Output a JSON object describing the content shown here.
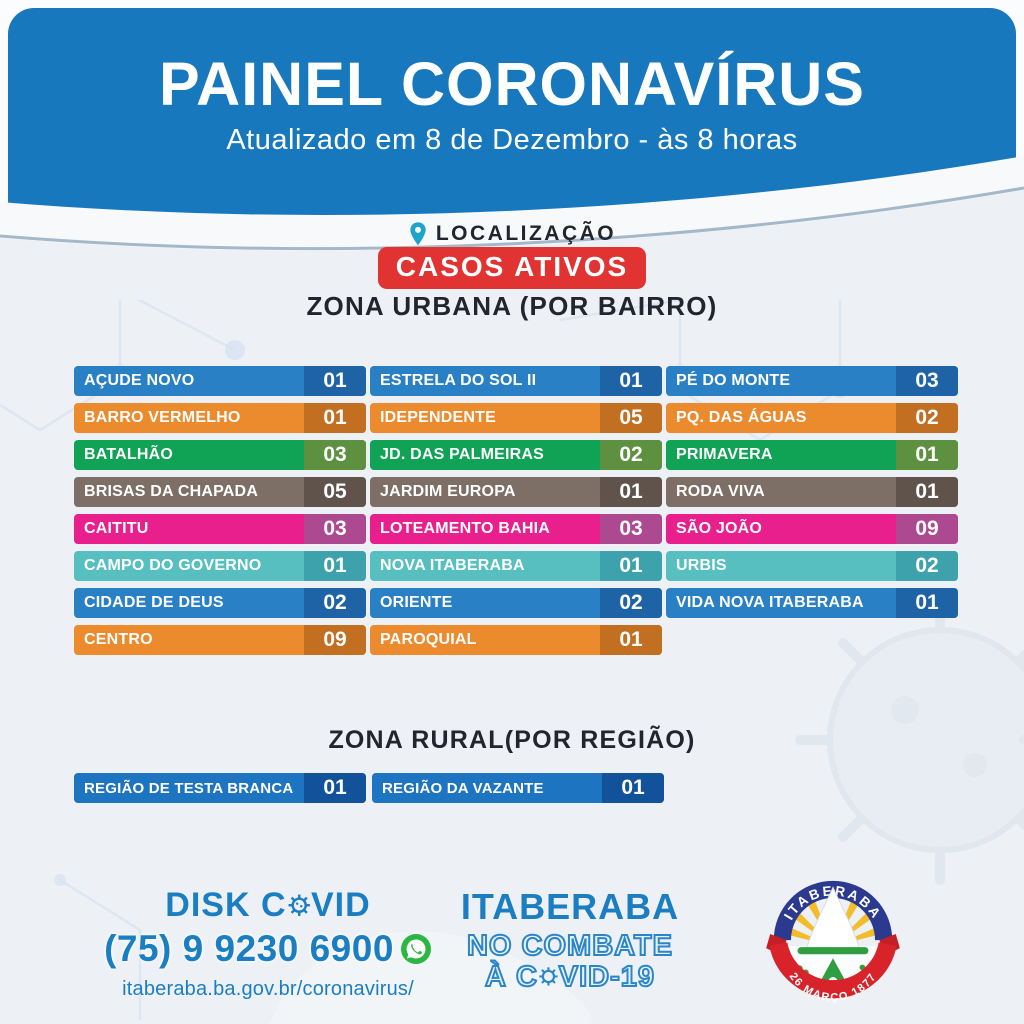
{
  "header": {
    "title": "PAINEL CORONAVÍRUS",
    "subtitle": "Atualizado em 8 de Dezembro - às 8 horas"
  },
  "sections": {
    "location_label": "LOCALIZAÇÃO",
    "badge": "CASOS ATIVOS",
    "urban_title": "ZONA URBANA (POR BAIRRO)",
    "rural_title": "ZONA RURAL(POR REGIÃO)"
  },
  "colors": {
    "header_blue": "#1878be",
    "badge_red": "#e23333",
    "footer_blue": "#1b7ec2",
    "whatsapp_green": "#2bb741",
    "blue": {
      "bg": "#2a80c5",
      "num": "#1d63a6"
    },
    "orange": {
      "bg": "#ec8a2e",
      "num": "#c26f22"
    },
    "green": {
      "bg": "#10a355",
      "num": "#5d9140"
    },
    "brown": {
      "bg": "#7d6e66",
      "num": "#60534b"
    },
    "magenta": {
      "bg": "#e91f8d",
      "num": "#ad4991"
    },
    "teal": {
      "bg": "#58bfc0",
      "num": "#3da2ab"
    },
    "rural": {
      "bg": "#1d74c0",
      "num": "#11529b"
    }
  },
  "urban": {
    "columns": [
      [
        {
          "label": "AÇUDE NOVO",
          "value": "01",
          "color": "blue"
        },
        {
          "label": "BARRO VERMELHO",
          "value": "01",
          "color": "orange"
        },
        {
          "label": "BATALHÃO",
          "value": "03",
          "color": "green"
        },
        {
          "label": "BRISAS DA CHAPADA",
          "value": "05",
          "color": "brown"
        },
        {
          "label": "CAITITU",
          "value": "03",
          "color": "magenta"
        },
        {
          "label": "CAMPO DO GOVERNO",
          "value": "01",
          "color": "teal"
        },
        {
          "label": "CIDADE DE DEUS",
          "value": "02",
          "color": "blue"
        },
        {
          "label": "CENTRO",
          "value": "09",
          "color": "orange"
        }
      ],
      [
        {
          "label": "ESTRELA DO SOL II",
          "value": "01",
          "color": "blue"
        },
        {
          "label": "IDEPENDENTE",
          "value": "05",
          "color": "orange"
        },
        {
          "label": "JD. DAS PALMEIRAS",
          "value": "02",
          "color": "green"
        },
        {
          "label": "JARDIM EUROPA",
          "value": "01",
          "color": "brown"
        },
        {
          "label": "LOTEAMENTO BAHIA",
          "value": "03",
          "color": "magenta"
        },
        {
          "label": "NOVA ITABERABA",
          "value": "01",
          "color": "teal"
        },
        {
          "label": "ORIENTE",
          "value": "02",
          "color": "blue"
        },
        {
          "label": "PAROQUIAL",
          "value": "01",
          "color": "orange"
        }
      ],
      [
        {
          "label": "PÉ DO MONTE",
          "value": "03",
          "color": "blue"
        },
        {
          "label": "PQ. DAS ÁGUAS",
          "value": "02",
          "color": "orange"
        },
        {
          "label": "PRIMAVERA",
          "value": "01",
          "color": "green"
        },
        {
          "label": "RODA VIVA",
          "value": "01",
          "color": "brown"
        },
        {
          "label": "SÃO JOÃO",
          "value": "09",
          "color": "magenta"
        },
        {
          "label": "URBIS",
          "value": "02",
          "color": "teal"
        },
        {
          "label": "VIDA NOVA ITABERABA",
          "value": "01",
          "color": "blue"
        }
      ]
    ]
  },
  "rural": {
    "items": [
      {
        "label": "REGIÃO DE TESTA BRANCA",
        "value": "01",
        "color": "rural"
      },
      {
        "label": "REGIÃO DA VAZANTE",
        "value": "01",
        "color": "rural"
      }
    ]
  },
  "footer": {
    "disk_pre": "DISK C",
    "disk_post": "VID",
    "phone": "(75) 9 9230 6900",
    "url": "itaberaba.ba.gov.br/coronavirus/",
    "campaign_line1": "ITABERABA",
    "campaign_line2": "NO COMBATE",
    "campaign_line3_pre": "À C",
    "campaign_line3_post": "VID-19",
    "seal_top": "ITABERABA",
    "seal_bottom": "26 MARÇO 1877"
  },
  "chart_data": {
    "type": "table",
    "title": "CASOS ATIVOS",
    "subtitle": "Atualizado em 8 de Dezembro - às 8 horas",
    "groups": [
      {
        "name": "ZONA URBANA (POR BAIRRO)",
        "categories": [
          "AÇUDE NOVO",
          "BARRO VERMELHO",
          "BATALHÃO",
          "BRISAS DA CHAPADA",
          "CAITITU",
          "CAMPO DO GOVERNO",
          "CIDADE DE DEUS",
          "CENTRO",
          "ESTRELA DO SOL II",
          "IDEPENDENTE",
          "JD. DAS PALMEIRAS",
          "JARDIM EUROPA",
          "LOTEAMENTO BAHIA",
          "NOVA ITABERABA",
          "ORIENTE",
          "PAROQUIAL",
          "PÉ DO MONTE",
          "PQ. DAS ÁGUAS",
          "PRIMAVERA",
          "RODA VIVA",
          "SÃO JOÃO",
          "URBIS",
          "VIDA NOVA ITABERABA"
        ],
        "values": [
          1,
          1,
          3,
          5,
          3,
          1,
          2,
          9,
          1,
          5,
          2,
          1,
          3,
          1,
          2,
          1,
          3,
          2,
          1,
          1,
          9,
          2,
          1
        ]
      },
      {
        "name": "ZONA RURAL(POR REGIÃO)",
        "categories": [
          "REGIÃO DE TESTA BRANCA",
          "REGIÃO DA VAZANTE"
        ],
        "values": [
          1,
          1
        ]
      }
    ]
  }
}
